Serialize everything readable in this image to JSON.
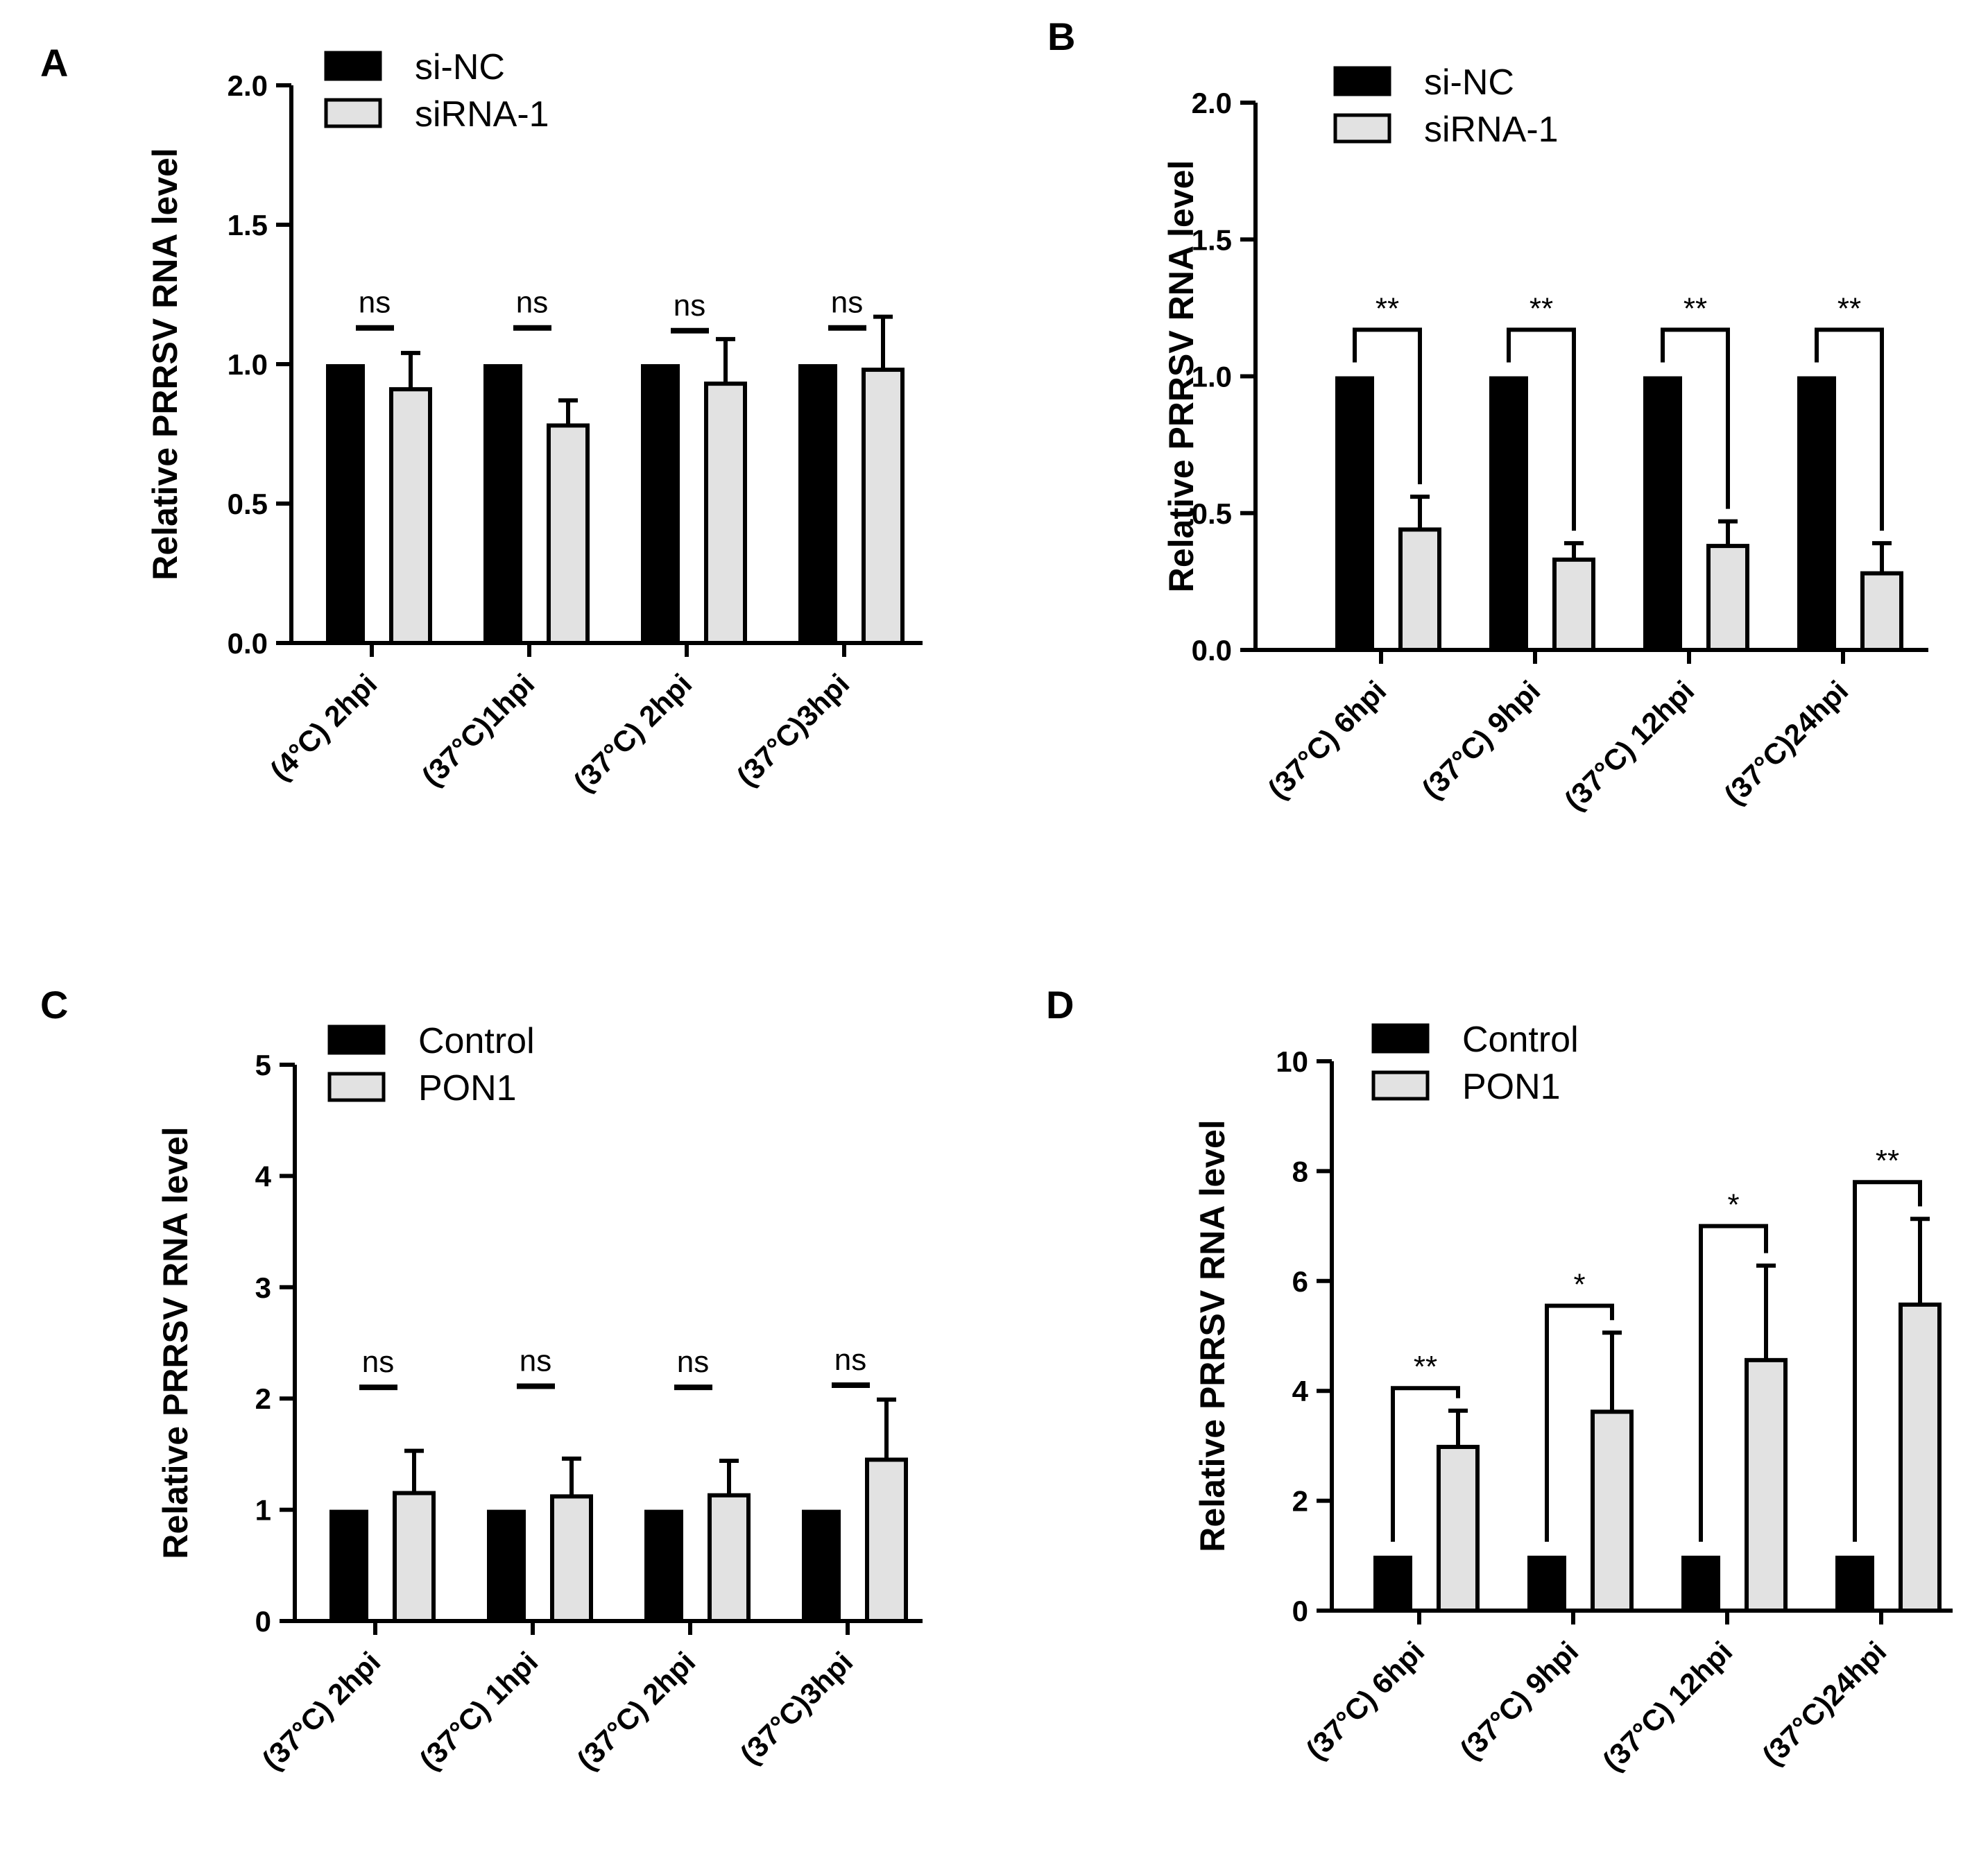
{
  "chart_data": [
    {
      "panel": "A",
      "type": "bar",
      "ylabel": "Relative PRRSV RNA level",
      "ylim": [
        0,
        2.0
      ],
      "yticks": [
        "0.0",
        "0.5",
        "1.0",
        "1.5",
        "2.0"
      ],
      "categories": [
        "(4°C) 2hpi",
        "(37°C)1hpi",
        "(37°C) 2hpi",
        "(37°C)3hpi"
      ],
      "series": [
        {
          "name": "si-NC",
          "color": "#000000",
          "values": [
            1.0,
            1.0,
            1.0,
            1.0
          ],
          "errors": [
            0,
            0,
            0,
            0
          ]
        },
        {
          "name": "siRNA-1",
          "color": "#e2e2e2",
          "values": [
            0.91,
            0.78,
            0.93,
            0.98
          ],
          "errors": [
            0.13,
            0.09,
            0.16,
            0.19
          ]
        }
      ],
      "significance": [
        {
          "label": "ns",
          "style": "line",
          "y": 1.13
        },
        {
          "label": "ns",
          "style": "line",
          "y": 1.13
        },
        {
          "label": "ns",
          "style": "line",
          "y": 1.12
        },
        {
          "label": "ns",
          "style": "line",
          "y": 1.13
        }
      ]
    },
    {
      "panel": "B",
      "type": "bar",
      "ylabel": "Relative PRRSV RNA level",
      "ylim": [
        0,
        2.0
      ],
      "yticks": [
        "0.0",
        "0.5",
        "1.0",
        "1.5",
        "2.0"
      ],
      "categories": [
        "(37°C) 6hpi",
        "(37°C) 9hpi",
        "(37°C) 12hpi",
        "(37°C)24hpi"
      ],
      "series": [
        {
          "name": "si-NC",
          "color": "#000000",
          "values": [
            1.0,
            1.0,
            1.0,
            1.0
          ],
          "errors": [
            0,
            0,
            0,
            0
          ]
        },
        {
          "name": "siRNA-1",
          "color": "#e2e2e2",
          "values": [
            0.44,
            0.33,
            0.38,
            0.28
          ],
          "errors": [
            0.12,
            0.06,
            0.09,
            0.11
          ]
        }
      ],
      "significance": [
        {
          "label": "**",
          "style": "bracket",
          "y": 1.17
        },
        {
          "label": "**",
          "style": "bracket",
          "y": 1.17
        },
        {
          "label": "**",
          "style": "bracket",
          "y": 1.17
        },
        {
          "label": "**",
          "style": "bracket",
          "y": 1.17
        }
      ]
    },
    {
      "panel": "C",
      "type": "bar",
      "ylabel": "Relative  PRRSV RNA level",
      "ylim": [
        0,
        5
      ],
      "yticks": [
        "0",
        "1",
        "2",
        "3",
        "4",
        "5"
      ],
      "categories": [
        "(37°C) 2hpi",
        "(37°C) 1hpi",
        "(37°C) 2hpi",
        "(37°C)3hpi"
      ],
      "series": [
        {
          "name": "Control",
          "color": "#000000",
          "values": [
            1.0,
            1.0,
            1.0,
            1.0
          ],
          "errors": [
            0,
            0,
            0,
            0
          ]
        },
        {
          "name": "PON1",
          "color": "#e2e2e2",
          "values": [
            1.15,
            1.12,
            1.13,
            1.45
          ],
          "errors": [
            0.38,
            0.34,
            0.31,
            0.54
          ]
        }
      ],
      "significance": [
        {
          "label": "ns",
          "style": "line",
          "y": 2.1
        },
        {
          "label": "ns",
          "style": "line",
          "y": 2.11
        },
        {
          "label": "ns",
          "style": "line",
          "y": 2.1
        },
        {
          "label": "ns",
          "style": "line",
          "y": 2.12
        }
      ]
    },
    {
      "panel": "D",
      "type": "bar",
      "ylabel": "Relative PRRSV RNA level",
      "ylim": [
        0,
        10
      ],
      "yticks": [
        "0",
        "2",
        "4",
        "6",
        "8",
        "10"
      ],
      "categories": [
        "(37°C) 6hpi",
        "(37°C) 9hpi",
        "(37°C) 12hpi",
        "(37°C)24hpi"
      ],
      "series": [
        {
          "name": "Control",
          "color": "#000000",
          "values": [
            1.0,
            1.0,
            1.0,
            1.0
          ],
          "errors": [
            0,
            0,
            0,
            0
          ]
        },
        {
          "name": "PON1",
          "color": "#e2e2e2",
          "values": [
            2.98,
            3.62,
            4.56,
            5.57
          ],
          "errors": [
            0.66,
            1.44,
            1.72,
            1.56
          ]
        }
      ],
      "significance": [
        {
          "label": "**",
          "style": "bracket",
          "y": 4.05
        },
        {
          "label": "*",
          "style": "bracket",
          "y": 5.55
        },
        {
          "label": "*",
          "style": "bracket",
          "y": 7.0
        },
        {
          "label": "**",
          "style": "bracket",
          "y": 7.8
        }
      ]
    }
  ]
}
